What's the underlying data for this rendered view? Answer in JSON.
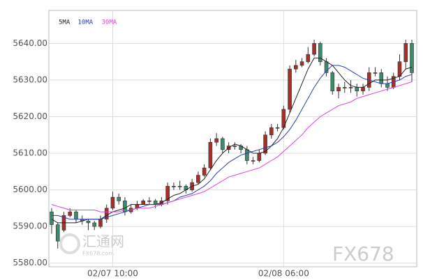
{
  "chart_data": {
    "type": "candlestick",
    "categories": [
      null,
      null,
      null,
      null,
      null,
      null,
      null,
      null,
      null,
      null,
      "02/07 10:00",
      null,
      null,
      null,
      null,
      null,
      null,
      null,
      null,
      null,
      null,
      null,
      null,
      null,
      null,
      null,
      null,
      null,
      null,
      null,
      null,
      null,
      null,
      null,
      null,
      null,
      null,
      null,
      "02/08 06:00",
      null,
      null,
      null,
      null,
      null,
      null,
      null,
      null,
      null,
      null,
      null,
      null,
      null,
      null,
      null,
      null,
      null,
      null,
      null,
      null,
      null
    ],
    "open": [
      5594,
      5590.5,
      5589,
      5593,
      5594,
      5592,
      5591.5,
      5591,
      5590,
      5592,
      5595,
      5598,
      5597,
      5594,
      5595,
      5596,
      5597,
      5597,
      5596,
      5597,
      5601,
      5601,
      5601,
      5600,
      5602,
      5604,
      5606,
      5613,
      5614,
      5611,
      5612,
      5612,
      5611,
      5608,
      5608,
      5610,
      5615,
      5617,
      5617,
      5622,
      5633,
      5634,
      5635,
      5637,
      5640,
      5635,
      5632,
      5627,
      5628,
      5628,
      5628,
      5627,
      5628,
      5632,
      5632,
      5629,
      5628,
      5631,
      5635,
      5640
    ],
    "high": [
      5595,
      5591,
      5594,
      5595,
      5594.5,
      5593,
      5592,
      5591.5,
      5593,
      5596,
      5599.5,
      5599,
      5598,
      5596,
      5597,
      5597.5,
      5598,
      5597.5,
      5598,
      5602,
      5602,
      5602.5,
      5601.5,
      5603,
      5605,
      5607,
      5614,
      5615.5,
      5614.5,
      5613,
      5613,
      5612.5,
      5612,
      5609,
      5611,
      5616,
      5618,
      5618,
      5623,
      5634,
      5635.5,
      5636,
      5639,
      5641,
      5640.5,
      5636,
      5632.5,
      5629,
      5629.5,
      5630,
      5629,
      5629,
      5633.5,
      5633.5,
      5633,
      5631,
      5632,
      5637,
      5641,
      5641
    ],
    "low": [
      5588,
      5584,
      5588.5,
      5592.5,
      5591,
      5590.5,
      5589,
      5589,
      5589.5,
      5591,
      5594.5,
      5596,
      5593,
      5593.5,
      5594.5,
      5596,
      5596,
      5595,
      5595.5,
      5596,
      5600,
      5600,
      5599,
      5599.5,
      5601.5,
      5603.5,
      5605.5,
      5612,
      5610,
      5610,
      5611,
      5610,
      5607,
      5607,
      5607.5,
      5609.5,
      5614,
      5616,
      5616.5,
      5621,
      5632,
      5633.5,
      5634.5,
      5636.5,
      5634,
      5631,
      5626,
      5625,
      5626.5,
      5626.5,
      5625.5,
      5626,
      5627,
      5631,
      5628,
      5627,
      5627.5,
      5630,
      5633,
      5629.5
    ],
    "close": [
      5590.5,
      5586,
      5593,
      5594,
      5592,
      5591.5,
      5591,
      5590,
      5592,
      5595,
      5598,
      5597,
      5594,
      5595,
      5596,
      5597,
      5597,
      5596,
      5597,
      5601,
      5601,
      5601,
      5600,
      5602,
      5604,
      5606,
      5613,
      5614,
      5611,
      5612,
      5612,
      5611,
      5608,
      5608,
      5610,
      5615,
      5617,
      5617,
      5622,
      5633,
      5634,
      5635,
      5637,
      5640,
      5635,
      5632,
      5627,
      5628,
      5628,
      5628,
      5627,
      5628,
      5632,
      5632,
      5629,
      5628,
      5631,
      5635,
      5640,
      5632
    ],
    "up_color": "#a5302a",
    "down_color": "#3f8a6a",
    "series": [
      {
        "name": "5MA",
        "color": "#222222",
        "values": [
          5592,
          5591,
          5591,
          5591,
          5591,
          5591.5,
          5592,
          5592,
          5592,
          5593,
          5594,
          5594.5,
          5595,
          5596,
          5596,
          5596,
          5596,
          5596,
          5596.5,
          5597.5,
          5598.5,
          5599,
          5600,
          5601,
          5601.5,
          5603,
          5605.5,
          5608,
          5610,
          5611.5,
          5612.5,
          5612,
          5611,
          5610,
          5610,
          5610.5,
          5612,
          5614,
          5617,
          5621,
          5625,
          5629,
          5633,
          5636,
          5636,
          5635,
          5634,
          5632,
          5630,
          5628.5,
          5628,
          5628,
          5629,
          5630,
          5630,
          5630,
          5630.5,
          5631,
          5633,
          5633.5
        ]
      },
      {
        "name": "10MA",
        "color": "#2b3fb8",
        "values": [
          5593,
          5593,
          5592.5,
          5592,
          5592,
          5592,
          5592,
          5592,
          5592,
          5592.5,
          5593,
          5593.5,
          5594,
          5594.5,
          5595,
          5595.5,
          5596,
          5596,
          5596,
          5596.5,
          5597,
          5598,
          5598.5,
          5599,
          5600,
          5601,
          5602.5,
          5604.5,
          5606,
          5607.5,
          5608.5,
          5609.5,
          5610,
          5610.5,
          5611,
          5611.5,
          5612,
          5613,
          5614.5,
          5616.5,
          5619,
          5622,
          5625,
          5628,
          5630.5,
          5632.5,
          5634,
          5634,
          5633.5,
          5632.5,
          5631.5,
          5630.5,
          5630,
          5629.5,
          5629,
          5629,
          5629.5,
          5630,
          5631,
          5631.5
        ]
      },
      {
        "name": "30MA",
        "color": "#e040e0",
        "values": [
          5596,
          5595.5,
          5595,
          5594.5,
          5594.5,
          5594.5,
          5594.5,
          5594.5,
          5594,
          5594,
          5594,
          5594,
          5594.5,
          5594.5,
          5595,
          5595,
          5595,
          5595.5,
          5596,
          5596.5,
          5597,
          5597.5,
          5598,
          5598.5,
          5599,
          5599.5,
          5600.5,
          5601.5,
          5602.5,
          5603.5,
          5604,
          5604.5,
          5605,
          5605.5,
          5606,
          5607,
          5608,
          5609,
          5610.5,
          5612,
          5613.5,
          5615,
          5617,
          5618.5,
          5620,
          5621,
          5622,
          5623,
          5623.5,
          5624,
          5625,
          5625.5,
          5626,
          5626.5,
          5627,
          5627.5,
          5628,
          5628.5,
          5629,
          5629.5
        ]
      }
    ],
    "ylim": [
      5579,
      5649
    ],
    "yticks": [
      {
        "value": 5580,
        "label": "5580.00"
      },
      {
        "value": 5590,
        "label": "5590.00"
      },
      {
        "value": 5600,
        "label": "5600.00"
      },
      {
        "value": 5610,
        "label": "5610.00"
      },
      {
        "value": 5620,
        "label": "5620.00"
      },
      {
        "value": 5630,
        "label": "5630.00"
      },
      {
        "value": 5640,
        "label": "5640.00"
      }
    ],
    "grid": true,
    "watermarks": [
      "汇通网",
      "FX678.com",
      "FX678"
    ]
  }
}
